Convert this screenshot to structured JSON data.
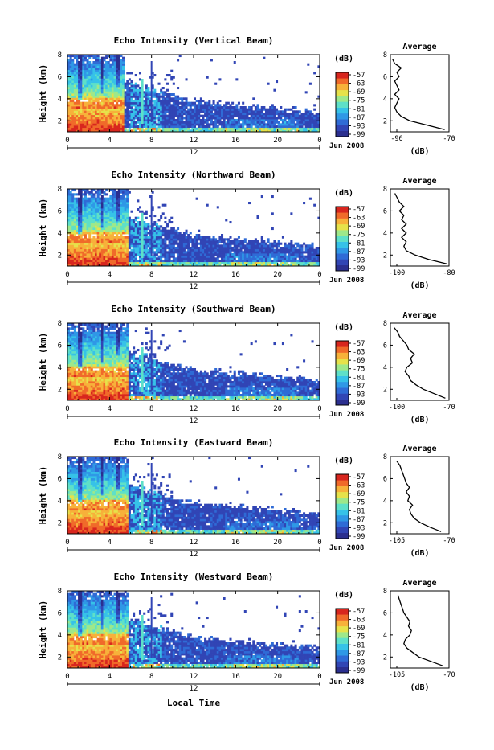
{
  "shared": {
    "ylabel": "Height (km)",
    "cbar_unit": "(dB)",
    "cbar_ticks": [
      "-57",
      "-63",
      "-69",
      "-75",
      "-81",
      "-87",
      "-93",
      "-99"
    ],
    "x_ticks": [
      "0",
      "4",
      "8",
      "12",
      "16",
      "20",
      "0"
    ],
    "y_ticks": [
      "2",
      "4",
      "6",
      "8"
    ],
    "date_mid": "12",
    "date_label": "Jun 2008",
    "avg_title": "Average",
    "avg_xlabel": "(dB)",
    "xlabel": "Local Time"
  },
  "colors": {
    "scale": [
      "#2b2f8f",
      "#3145b5",
      "#2f6bd6",
      "#2f98e6",
      "#36c2e8",
      "#5ee0c8",
      "#9ee88a",
      "#e6e24a",
      "#f7b13a",
      "#f06a2a",
      "#d8261e"
    ]
  },
  "chart_data": [
    {
      "type": "heatmap",
      "title": "Echo Intensity (Vertical Beam)",
      "x_range_hours": [
        0,
        24
      ],
      "y_range_km": [
        1,
        8
      ],
      "color_range_dB": [
        -99,
        -57
      ],
      "avg_profile": {
        "type": "line",
        "title": "Average",
        "xlabel": "(dB)",
        "x_ticks": [
          "-96",
          "-70"
        ],
        "xlim": [
          -97,
          -70
        ],
        "ylim": [
          1,
          8
        ],
        "height_km": [
          1.2,
          1.6,
          2.0,
          2.4,
          2.8,
          3.2,
          3.6,
          4.0,
          4.4,
          4.8,
          5.2,
          5.6,
          6.0,
          6.4,
          6.8,
          7.2,
          7.6
        ],
        "values_dB": [
          -72,
          -80,
          -88,
          -92,
          -94,
          -95,
          -94,
          -93,
          -95,
          -93,
          -94,
          -95,
          -93,
          -94,
          -92,
          -95,
          -96
        ]
      }
    },
    {
      "type": "heatmap",
      "title": "Echo Intensity (Northward Beam)",
      "x_range_hours": [
        0,
        24
      ],
      "y_range_km": [
        1,
        8
      ],
      "color_range_dB": [
        -99,
        -57
      ],
      "avg_profile": {
        "type": "line",
        "title": "Average",
        "xlabel": "(dB)",
        "x_ticks": [
          "-100",
          "-80"
        ],
        "xlim": [
          -101,
          -75
        ],
        "ylim": [
          1,
          8
        ],
        "height_km": [
          1.2,
          1.6,
          2.0,
          2.4,
          2.8,
          3.2,
          3.6,
          4.0,
          4.4,
          4.8,
          5.2,
          5.6,
          6.0,
          6.4,
          6.8,
          7.2,
          7.6
        ],
        "values_dB": [
          -76,
          -84,
          -90,
          -94,
          -95,
          -94,
          -96,
          -94,
          -96,
          -94,
          -96,
          -95,
          -97,
          -95,
          -97,
          -98,
          -99
        ]
      }
    },
    {
      "type": "heatmap",
      "title": "Echo Intensity (Southward Beam)",
      "x_range_hours": [
        0,
        24
      ],
      "y_range_km": [
        1,
        8
      ],
      "color_range_dB": [
        -99,
        -57
      ],
      "avg_profile": {
        "type": "line",
        "title": "Average",
        "xlabel": "(dB)",
        "x_ticks": [
          "-100",
          "-70"
        ],
        "xlim": [
          -102,
          -70
        ],
        "ylim": [
          1,
          8
        ],
        "height_km": [
          1.2,
          1.6,
          2.0,
          2.4,
          2.8,
          3.2,
          3.6,
          4.0,
          4.4,
          4.8,
          5.2,
          5.6,
          6.0,
          6.4,
          6.8,
          7.2,
          7.6
        ],
        "values_dB": [
          -72,
          -78,
          -84,
          -88,
          -91,
          -92,
          -94,
          -93,
          -90,
          -91,
          -89,
          -92,
          -93,
          -95,
          -97,
          -98,
          -100
        ]
      }
    },
    {
      "type": "heatmap",
      "title": "Echo Intensity (Eastward Beam)",
      "x_range_hours": [
        0,
        24
      ],
      "y_range_km": [
        1,
        8
      ],
      "color_range_dB": [
        -99,
        -57
      ],
      "avg_profile": {
        "type": "line",
        "title": "Average",
        "xlabel": "(dB)",
        "x_ticks": [
          "-105",
          "-70"
        ],
        "xlim": [
          -107,
          -70
        ],
        "ylim": [
          1,
          8
        ],
        "height_km": [
          1.2,
          1.6,
          2.0,
          2.4,
          2.8,
          3.2,
          3.6,
          4.0,
          4.4,
          4.8,
          5.2,
          5.6,
          6.0,
          6.4,
          6.8,
          7.2,
          7.6
        ],
        "values_dB": [
          -75,
          -82,
          -88,
          -92,
          -94,
          -95,
          -93,
          -96,
          -95,
          -97,
          -95,
          -97,
          -98,
          -99,
          -100,
          -101,
          -103
        ]
      }
    },
    {
      "type": "heatmap",
      "title": "Echo Intensity (Westward Beam)",
      "x_range_hours": [
        0,
        24
      ],
      "y_range_km": [
        1,
        8
      ],
      "color_range_dB": [
        -99,
        -57
      ],
      "avg_profile": {
        "type": "line",
        "title": "Average",
        "xlabel": "(dB)",
        "x_ticks": [
          "-105",
          "-70"
        ],
        "xlim": [
          -107,
          -68
        ],
        "ylim": [
          1,
          8
        ],
        "height_km": [
          1.2,
          1.6,
          2.0,
          2.4,
          2.8,
          3.2,
          3.6,
          4.0,
          4.4,
          4.8,
          5.2,
          5.6,
          6.0,
          6.4,
          6.8,
          7.2,
          7.6
        ],
        "values_dB": [
          -72,
          -80,
          -88,
          -92,
          -96,
          -98,
          -97,
          -94,
          -93,
          -95,
          -94,
          -96,
          -98,
          -99,
          -100,
          -101,
          -102
        ]
      }
    }
  ]
}
